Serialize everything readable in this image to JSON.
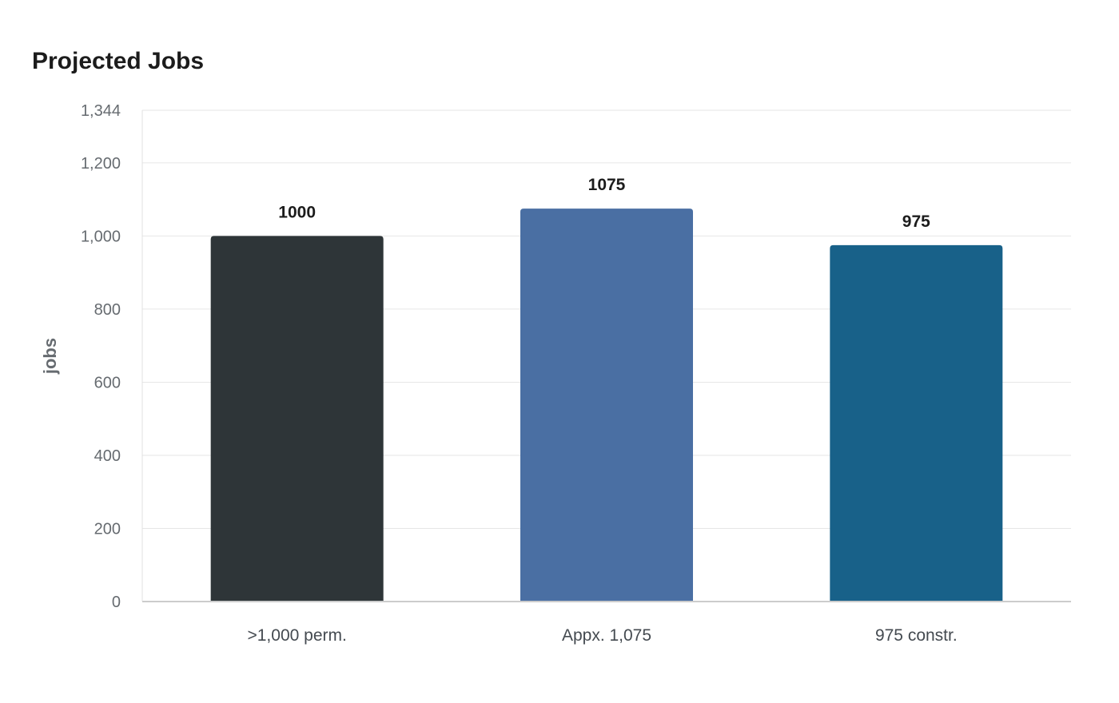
{
  "chart_data": {
    "type": "bar",
    "title": "Projected Jobs",
    "ylabel": "jobs",
    "xlabel": "",
    "categories": [
      ">1,000 perm.",
      "Appx. 1,075",
      "975 constr."
    ],
    "values": [
      1000,
      1075,
      975
    ],
    "data_labels": [
      "1000",
      "1075",
      "975"
    ],
    "ylim": [
      0,
      1344
    ],
    "yticks": [
      0,
      200,
      400,
      600,
      800,
      1000,
      1200,
      1344
    ],
    "ytick_labels": [
      "0",
      "200",
      "400",
      "600",
      "800",
      "1,000",
      "1,200",
      "1,344"
    ],
    "grid": true,
    "legend": "none",
    "colors": [
      "#2e3538",
      "#4a6fa3",
      "#186189"
    ]
  }
}
